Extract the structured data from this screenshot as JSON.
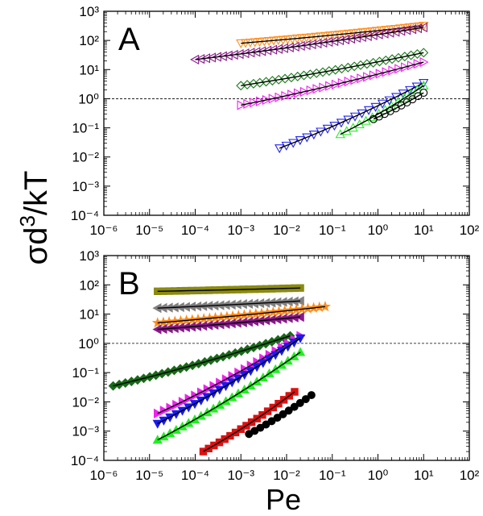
{
  "chart_data": [
    {
      "type": "scatter",
      "panel_label": "A",
      "xscale": "log",
      "yscale": "log",
      "xlim": [
        1e-06,
        100
      ],
      "ylim": [
        0.0001,
        1000
      ],
      "x_ticks": [
        1e-06,
        1e-05,
        0.0001,
        0.001,
        0.01,
        0.1,
        1,
        10,
        100
      ],
      "y_ticks": [
        0.0001,
        0.001,
        0.01,
        0.1,
        1,
        10,
        100,
        1000
      ],
      "reference_line_y": 1,
      "series": [
        {
          "color": "#ff8c1a",
          "marker": "tri-down",
          "filled": false,
          "fit": true,
          "x_range": [
            0.001,
            10
          ],
          "y_range": [
            80,
            320
          ],
          "count": 40
        },
        {
          "color": "#8a1a8a",
          "marker": "tri-left",
          "filled": false,
          "fit": true,
          "x_range": [
            0.0001,
            10
          ],
          "y_range": [
            22,
            280
          ],
          "count": 42
        },
        {
          "color": "#1a7a1a",
          "marker": "diamond",
          "filled": false,
          "fit": true,
          "x_range": [
            0.001,
            10
          ],
          "y_range": [
            2.8,
            38
          ],
          "count": 30
        },
        {
          "color": "#ee22ee",
          "marker": "tri-right",
          "filled": false,
          "fit": true,
          "x_range": [
            0.001,
            10
          ],
          "y_range": [
            0.6,
            18
          ],
          "count": 30
        },
        {
          "color": "#2222ee",
          "marker": "tri-down",
          "filled": false,
          "fit": true,
          "x_range": [
            0.007,
            10
          ],
          "y_range": [
            0.02,
            3.5
          ],
          "count": 22
        },
        {
          "color": "#22ee22",
          "marker": "tri-up",
          "filled": false,
          "fit": true,
          "x_range": [
            0.15,
            10
          ],
          "y_range": [
            0.06,
            2.8
          ],
          "count": 14
        },
        {
          "color": "#000000",
          "marker": "circle",
          "filled": false,
          "fit": true,
          "x_range": [
            0.8,
            10
          ],
          "y_range": [
            0.2,
            1.6
          ],
          "count": 10
        }
      ]
    },
    {
      "type": "scatter",
      "panel_label": "B",
      "xlabel": "Pe",
      "xscale": "log",
      "yscale": "log",
      "xlim": [
        1e-06,
        100
      ],
      "ylim": [
        0.0001,
        1000
      ],
      "x_ticks": [
        1e-06,
        1e-05,
        0.0001,
        0.001,
        0.01,
        0.1,
        1,
        10,
        100
      ],
      "y_ticks": [
        0.0001,
        0.001,
        0.01,
        0.1,
        1,
        10,
        100,
        1000
      ],
      "reference_line_y": 1,
      "series": [
        {
          "color": "#8a8a10",
          "marker": "square",
          "filled": true,
          "fit": true,
          "x_range": [
            1.5e-05,
            0.02
          ],
          "y_range": [
            60,
            78
          ],
          "count": 26
        },
        {
          "color": "#808080",
          "marker": "tri-left",
          "filled": true,
          "fit": true,
          "x_range": [
            1.5e-05,
            0.02
          ],
          "y_range": [
            16,
            28
          ],
          "count": 26
        },
        {
          "color": "#ff8c1a",
          "marker": "star",
          "filled": true,
          "fit": true,
          "x_range": [
            1.5e-05,
            0.07
          ],
          "y_range": [
            5,
            18
          ],
          "count": 30
        },
        {
          "color": "#8a1a8a",
          "marker": "tri-left",
          "filled": true,
          "fit": true,
          "x_range": [
            1.5e-05,
            0.02
          ],
          "y_range": [
            3,
            8
          ],
          "count": 26
        },
        {
          "color": "#1a6a1a",
          "marker": "diamond",
          "filled": true,
          "fit": true,
          "x_range": [
            1.6e-06,
            0.012
          ],
          "y_range": [
            0.035,
            1.8
          ],
          "count": 30
        },
        {
          "color": "#ee22ee",
          "marker": "tri-right",
          "filled": true,
          "fit": true,
          "x_range": [
            1.5e-05,
            0.02
          ],
          "y_range": [
            0.004,
            1.8
          ],
          "count": 24
        },
        {
          "color": "#1a1aee",
          "marker": "tri-down",
          "filled": true,
          "fit": true,
          "x_range": [
            1.5e-05,
            0.02
          ],
          "y_range": [
            0.0018,
            1.5
          ],
          "count": 24
        },
        {
          "color": "#22ee22",
          "marker": "tri-up",
          "filled": true,
          "fit": true,
          "x_range": [
            1.5e-05,
            0.02
          ],
          "y_range": [
            0.0005,
            0.5
          ],
          "count": 24
        },
        {
          "color": "#dd1111",
          "marker": "square",
          "filled": true,
          "fit": true,
          "x_range": [
            0.00015,
            0.015
          ],
          "y_range": [
            0.0002,
            0.022
          ],
          "count": 18
        },
        {
          "color": "#000000",
          "marker": "circle",
          "filled": true,
          "fit": true,
          "x_range": [
            0.0015,
            0.035
          ],
          "y_range": [
            0.0008,
            0.017
          ],
          "count": 12
        }
      ]
    }
  ]
}
